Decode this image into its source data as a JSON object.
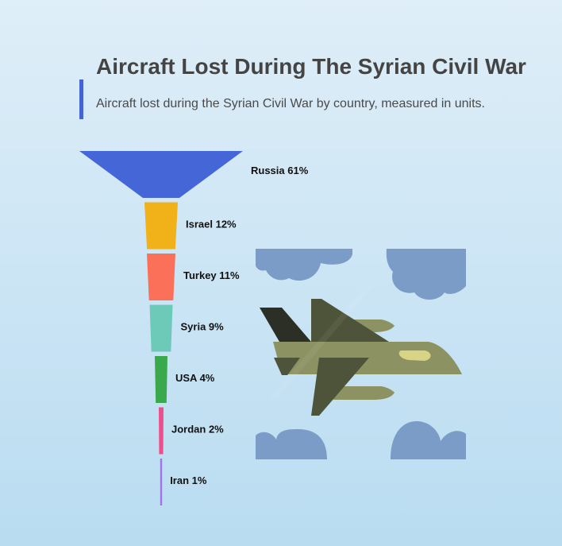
{
  "header": {
    "title": "Aircraft Lost During The Syrian Civil War",
    "subtitle": "Aircraft lost during the Syrian Civil War by country, measured in units."
  },
  "chart_data": {
    "type": "funnel",
    "title": "Aircraft Lost During The Syrian Civil War",
    "subtitle": "Aircraft lost during the Syrian Civil War by country, measured in units.",
    "unit": "%",
    "categories": [
      "Russia",
      "Israel",
      "Turkey",
      "Syria",
      "USA",
      "Jordan",
      "Iran"
    ],
    "values": [
      61,
      12,
      11,
      9,
      4,
      2,
      1
    ],
    "labels": [
      "Russia 61%",
      "Israel 12%",
      "Turkey 11%",
      "Syria 9%",
      "USA 4%",
      "Jordan 2%",
      "Iran 1%"
    ],
    "colors": [
      "#4466d6",
      "#f0b119",
      "#fb7058",
      "#6ecab8",
      "#3aa84d",
      "#ec4f8c",
      "#a472e8"
    ]
  },
  "illustration": {
    "icon": "fighter-jet-with-clouds",
    "colors": {
      "cloud": "#7b9cc7",
      "jet_body": "#8c9262",
      "jet_wing": "#4d5439",
      "jet_tail": "#2b2f25",
      "canopy": "#d8d485"
    }
  }
}
